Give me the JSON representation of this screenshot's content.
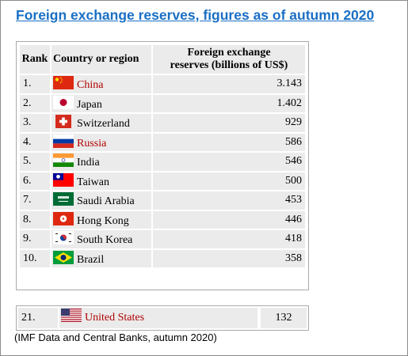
{
  "title": "Foreign exchange reserves, figures as of autumn 2020",
  "table": {
    "headers": {
      "rank": "Rank",
      "country": "Country or region",
      "value_line1": "Foreign exchange",
      "value_line2": "reserves (billions of US$)"
    },
    "rows": [
      {
        "rank": "1.",
        "country": "China",
        "value": "3.143",
        "flag": "china-flag-icon",
        "link": true
      },
      {
        "rank": "2.",
        "country": "Japan",
        "value": "1.402",
        "flag": "japan-flag-icon",
        "link": false
      },
      {
        "rank": "3.",
        "country": "Switzerland",
        "value": "929",
        "flag": "switzerland-flag-icon",
        "link": false
      },
      {
        "rank": "4.",
        "country": "Russia",
        "value": "586",
        "flag": "russia-flag-icon",
        "link": true
      },
      {
        "rank": "5.",
        "country": "India",
        "value": "546",
        "flag": "india-flag-icon",
        "link": false
      },
      {
        "rank": "6.",
        "country": "Taiwan",
        "value": "500",
        "flag": "taiwan-flag-icon",
        "link": false
      },
      {
        "rank": "7.",
        "country": "Saudi Arabia",
        "value": "453",
        "flag": "saudi-arabia-flag-icon",
        "link": false
      },
      {
        "rank": "8.",
        "country": "Hong Kong",
        "value": "446",
        "flag": "hong-kong-flag-icon",
        "link": false
      },
      {
        "rank": "9.",
        "country": "South Korea",
        "value": "418",
        "flag": "south-korea-flag-icon",
        "link": false
      },
      {
        "rank": "10.",
        "country": "Brazil",
        "value": "358",
        "flag": "brazil-flag-icon",
        "link": false
      }
    ]
  },
  "us_row": {
    "rank": "21.",
    "country": "United States",
    "value": "132",
    "flag": "united-states-flag-icon",
    "link": true
  },
  "source_note": "(IMF Data and Central Banks, autumn 2020)",
  "colors": {
    "title": "#1a6fc4",
    "link_text": "#b00000",
    "cell_background": "#ebebeb"
  }
}
